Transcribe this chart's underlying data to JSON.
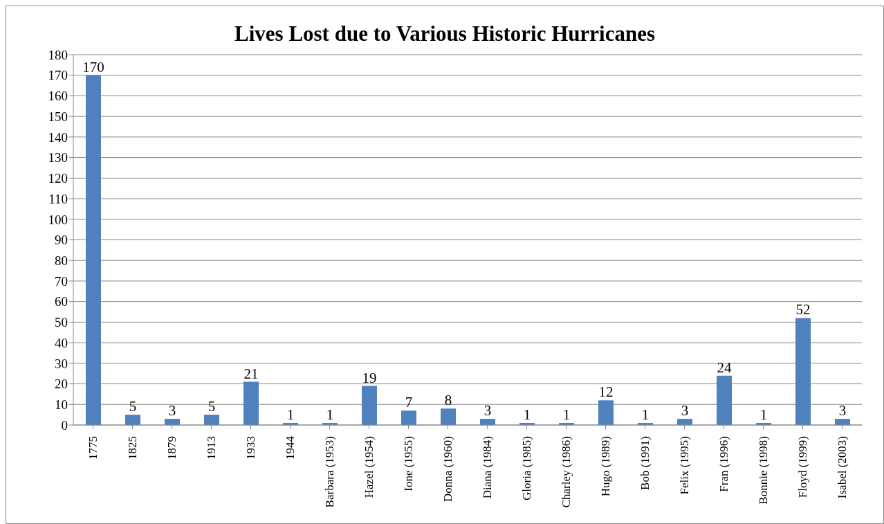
{
  "chart_data": {
    "type": "bar",
    "title": "Lives Lost due to Various Historic Hurricanes",
    "categories": [
      "1775",
      "1825",
      "1879",
      "1913",
      "1933",
      "1944",
      "Barbara (1953)",
      "Hazel (1954)",
      "Ione (1955)",
      "Donna (1960)",
      "Diana (1984)",
      "Gloria (1985)",
      "Charley (1986)",
      "Hugo (1989)",
      "Bob (1991)",
      "Felix (1995)",
      "Fran (1996)",
      "Bonnie (1998)",
      "Floyd (1999)",
      "Isabel (2003)"
    ],
    "values": [
      170,
      5,
      3,
      5,
      21,
      1,
      1,
      19,
      7,
      8,
      3,
      1,
      1,
      12,
      1,
      3,
      24,
      1,
      52,
      3
    ],
    "color": "#4f81bd",
    "ylim": [
      0,
      180
    ],
    "yticks": [
      0,
      10,
      20,
      30,
      40,
      50,
      60,
      70,
      80,
      90,
      100,
      110,
      120,
      130,
      140,
      150,
      160,
      170,
      180
    ],
    "grid": "y",
    "data_labels": true,
    "legend": false
  }
}
